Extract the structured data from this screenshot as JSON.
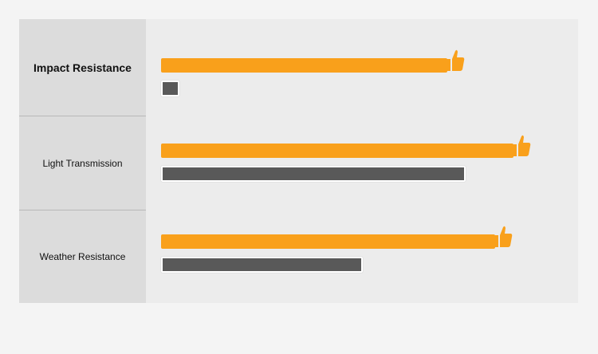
{
  "chart_data": {
    "type": "bar",
    "orientation": "horizontal",
    "categories": [
      "Impact Resistance",
      "Light Transmission",
      "Weather Resistance"
    ],
    "series": [
      {
        "values": [
          78,
          96,
          91
        ],
        "color": "#f9a01b",
        "marker_icon": "thumbs-up-icon"
      },
      {
        "values": [
          5,
          83,
          55
        ],
        "color": "#595959"
      }
    ],
    "xlim": [
      0,
      100
    ],
    "grid": false,
    "legend": "none"
  }
}
